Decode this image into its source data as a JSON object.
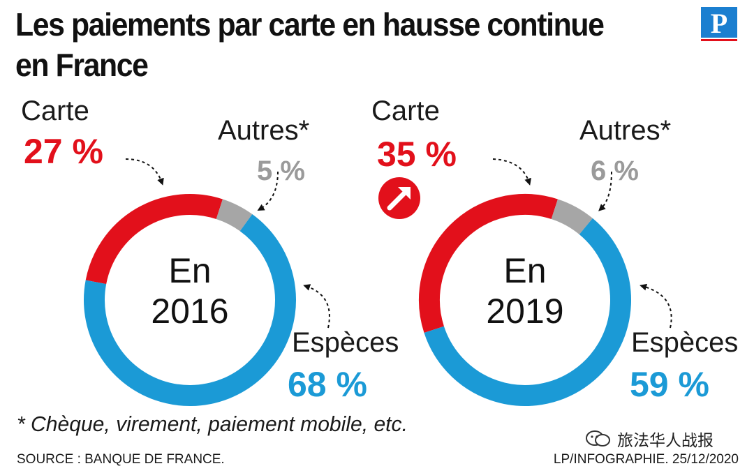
{
  "title": "Les paiements par carte en hausse continue en France",
  "logo_letter": "P",
  "chart_data": [
    {
      "type": "pie",
      "center_label": [
        "En",
        "2016"
      ],
      "slices": [
        {
          "name": "Carte",
          "value": 27,
          "display": "27 %",
          "color": "#e2101b"
        },
        {
          "name": "Autres*",
          "value": 5,
          "display": "5 %",
          "color": "#a6a6a6"
        },
        {
          "name": "Espèces",
          "value": 68,
          "display": "68 %",
          "color": "#1b9ad6"
        }
      ]
    },
    {
      "type": "pie",
      "center_label": [
        "En",
        "2019"
      ],
      "trend_badge": "up-arrow",
      "slices": [
        {
          "name": "Carte",
          "value": 35,
          "display": "35 %",
          "color": "#e2101b"
        },
        {
          "name": "Autres*",
          "value": 6,
          "display": "6 %",
          "color": "#a6a6a6"
        },
        {
          "name": "Espèces",
          "value": 59,
          "display": "59 %",
          "color": "#1b9ad6"
        }
      ]
    }
  ],
  "footnote": "* Chèque, virement, paiement mobile, etc.",
  "source": "SOURCE : BANQUE DE FRANCE.",
  "credit": "LP/INFOGRAPHIE.  25/12/2020",
  "watermark": "旅法华人战报",
  "icons": {
    "trend": "up-right-arrow-icon",
    "wechat": "wechat-search-icon",
    "logo": "le-parisien-logo"
  }
}
